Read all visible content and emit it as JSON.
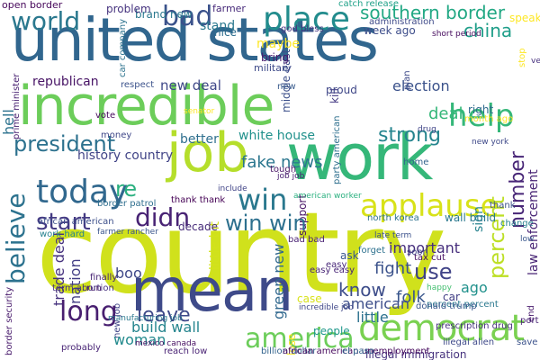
{
  "words": [
    {
      "text": "country",
      "color": "#d0e11c"
    },
    {
      "text": "united states",
      "color": "#31668e"
    },
    {
      "text": "incredible",
      "color": "#6ccd5a"
    },
    {
      "text": "work",
      "color": "#35b779"
    },
    {
      "text": "job",
      "color": "#b5de2b"
    },
    {
      "text": "mean",
      "color": "#3e4a89"
    },
    {
      "text": "democrat",
      "color": "#7ad151"
    },
    {
      "text": "applause",
      "color": "#d8e219"
    },
    {
      "text": "america",
      "color": "#6ccd5a"
    },
    {
      "text": "today",
      "color": "#31688e"
    },
    {
      "text": "help",
      "color": "#35b779"
    },
    {
      "text": "place",
      "color": "#228c8d"
    },
    {
      "text": "bad",
      "color": "#3b528b"
    },
    {
      "text": "world",
      "color": "#2a788e"
    },
    {
      "text": "president",
      "color": "#2c718e"
    },
    {
      "text": "southern border",
      "color": "#22a884"
    },
    {
      "text": "believe",
      "color": "#2c728e"
    },
    {
      "text": "long",
      "color": "#481f70"
    },
    {
      "text": "didn",
      "color": "#482374"
    },
    {
      "text": "win",
      "color": "#2a788e"
    },
    {
      "text": "win win",
      "color": "#2d708e"
    },
    {
      "text": "start",
      "color": "#443a83"
    },
    {
      "text": "leave",
      "color": "#3e4989"
    },
    {
      "text": "use",
      "color": "#404387"
    },
    {
      "text": "know",
      "color": "#3d4d8a"
    },
    {
      "text": "fake news",
      "color": "#2a768e"
    },
    {
      "text": "number",
      "color": "#482677"
    },
    {
      "text": "percent",
      "color": "#bddf26"
    },
    {
      "text": "china",
      "color": "#1f9e89"
    },
    {
      "text": "white house",
      "color": "#21918c"
    },
    {
      "text": "strong",
      "color": "#25848e"
    },
    {
      "text": "deal",
      "color": "#35b779"
    },
    {
      "text": "history country",
      "color": "#414487"
    },
    {
      "text": "republican",
      "color": "#471365"
    },
    {
      "text": "new deal",
      "color": "#3f4788"
    },
    {
      "text": "better",
      "color": "#2e6f8e"
    },
    {
      "text": "stand",
      "color": "#2a788e"
    },
    {
      "text": "maybe",
      "color": "#fde725"
    },
    {
      "text": "fight",
      "color": "#3b528b"
    },
    {
      "text": "woman",
      "color": "#238a8d"
    },
    {
      "text": "build wall",
      "color": "#25858e"
    },
    {
      "text": "folk",
      "color": "#39568c"
    },
    {
      "text": "little",
      "color": "#2c718e"
    },
    {
      "text": "american",
      "color": "#3d4e8a"
    },
    {
      "text": "important",
      "color": "#472f7d"
    },
    {
      "text": "green new",
      "color": "#31688e"
    },
    {
      "text": "election",
      "color": "#3b528b"
    },
    {
      "text": "trade deal",
      "color": "#46327e"
    },
    {
      "text": "nation",
      "color": "#433e85"
    },
    {
      "text": "support",
      "color": "#471365"
    },
    {
      "text": "law enforcement",
      "color": "#482475"
    },
    {
      "text": "hell",
      "color": "#2c728e"
    },
    {
      "text": "re",
      "color": "#2ab07f"
    },
    {
      "text": "boo",
      "color": "#3f4889"
    },
    {
      "text": "lose",
      "color": "#fde725"
    },
    {
      "text": "ago",
      "color": "#21918c"
    },
    {
      "text": "sign",
      "color": "#26828e"
    },
    {
      "text": "little bit",
      "color": "#d2e21b"
    },
    {
      "text": "border patrol",
      "color": "#2e6e8e"
    },
    {
      "text": "african american",
      "color": "#3c4f8a"
    },
    {
      "text": "work hard",
      "color": "#26828e"
    },
    {
      "text": "farmer rancher",
      "color": "#39558c"
    },
    {
      "text": "decade",
      "color": "#472c7a"
    },
    {
      "text": "bad bad",
      "color": "#482173"
    },
    {
      "text": "north korea",
      "color": "#2d718e"
    },
    {
      "text": "wall build",
      "color": "#2a788e"
    },
    {
      "text": "tax cut",
      "color": "#471063"
    },
    {
      "text": "soon",
      "color": "#404588"
    },
    {
      "text": "forget",
      "color": "#2d718e"
    },
    {
      "text": "late term",
      "color": "#3b518b"
    },
    {
      "text": "ask",
      "color": "#39568c"
    },
    {
      "text": "easy",
      "color": "#482878"
    },
    {
      "text": "easy easy",
      "color": "#482576"
    },
    {
      "text": "happy",
      "color": "#44bf70"
    },
    {
      "text": "car",
      "color": "#423f85"
    },
    {
      "text": "percent percent",
      "color": "#2a788e"
    },
    {
      "text": "prescription drug",
      "color": "#46307e"
    },
    {
      "text": "illegal immigration",
      "color": "#46327e"
    },
    {
      "text": "illegal alien",
      "color": "#3e4989"
    },
    {
      "text": "people",
      "color": "#1f988b"
    },
    {
      "text": "case",
      "color": "#d8e219"
    },
    {
      "text": "incredible job",
      "color": "#3f4788"
    },
    {
      "text": "job job",
      "color": "#482071"
    },
    {
      "text": "probably",
      "color": "#482475"
    },
    {
      "text": "manufacturing job",
      "color": "#2a788e"
    },
    {
      "text": "new job",
      "color": "#404588"
    },
    {
      "text": "finally",
      "color": "#482475"
    },
    {
      "text": "run",
      "color": "#471365"
    },
    {
      "text": "term abortion",
      "color": "#46307e"
    },
    {
      "text": "border security",
      "color": "#481a6c"
    },
    {
      "text": "prime minister",
      "color": "#482071"
    },
    {
      "text": "vote",
      "color": "#46085c"
    },
    {
      "text": "money",
      "color": "#3f4788"
    },
    {
      "text": "respect",
      "color": "#3b528b"
    },
    {
      "text": "brand new",
      "color": "#2a788e"
    },
    {
      "text": "farmer",
      "color": "#472a7a"
    },
    {
      "text": "nice",
      "color": "#2e6e8e"
    },
    {
      "text": "problem",
      "color": "#46337f"
    },
    {
      "text": "open border",
      "color": "#46075a"
    },
    {
      "text": "bring",
      "color": "#481c6e"
    },
    {
      "text": "military",
      "color": "#3e4a89"
    },
    {
      "text": "god bless",
      "color": "#45337f"
    },
    {
      "text": "week ago",
      "color": "#3d4d8a"
    },
    {
      "text": "administration",
      "color": "#3e4a89"
    },
    {
      "text": "catch release",
      "color": "#1fa188"
    },
    {
      "text": "speak",
      "color": "#fde725"
    },
    {
      "text": "right",
      "color": "#2f6b8e"
    },
    {
      "text": "month ago",
      "color": "#fde725"
    },
    {
      "text": "proud",
      "color": "#3f4788"
    },
    {
      "text": "new",
      "color": "#375a8c"
    },
    {
      "text": "kill",
      "color": "#443983"
    },
    {
      "text": "middle east",
      "color": "#3c4f8a"
    },
    {
      "text": "tough",
      "color": "#471365"
    },
    {
      "text": "car company",
      "color": "#2c728e"
    },
    {
      "text": "american worker",
      "color": "#2ab07f"
    },
    {
      "text": "party american",
      "color": "#2e6f8e"
    },
    {
      "text": "include",
      "color": "#404387"
    },
    {
      "text": "thank thank",
      "color": "#440154"
    },
    {
      "text": "billion dollar",
      "color": "#33638d"
    },
    {
      "text": "reach low",
      "color": "#482173"
    },
    {
      "text": "mexico canada",
      "color": "#471063"
    },
    {
      "text": "african american unemployment",
      "color": "#46085c"
    },
    {
      "text": "el paso",
      "color": "#32658e"
    },
    {
      "text": "thank",
      "color": "#3b528b"
    },
    {
      "text": "change",
      "color": "#26828e"
    },
    {
      "text": "home",
      "color": "#33638d"
    },
    {
      "text": "drug",
      "color": "#404588"
    },
    {
      "text": "port entry",
      "color": "#482374"
    },
    {
      "text": "donald trump",
      "color": "#39568c"
    },
    {
      "text": "save country",
      "color": "#3b528b"
    },
    {
      "text": "new york",
      "color": "#3e4989"
    },
    {
      "text": "short period",
      "color": "#460b5e"
    },
    {
      "text": "end",
      "color": "#481a6c"
    },
    {
      "text": "ve",
      "color": "#46307e"
    },
    {
      "text": "plan",
      "color": "#3e4a89"
    },
    {
      "text": "stop",
      "color": "#fde725"
    },
    {
      "text": "senator",
      "color": "#fde725"
    },
    {
      "text": "low",
      "color": "#39568c"
    }
  ]
}
